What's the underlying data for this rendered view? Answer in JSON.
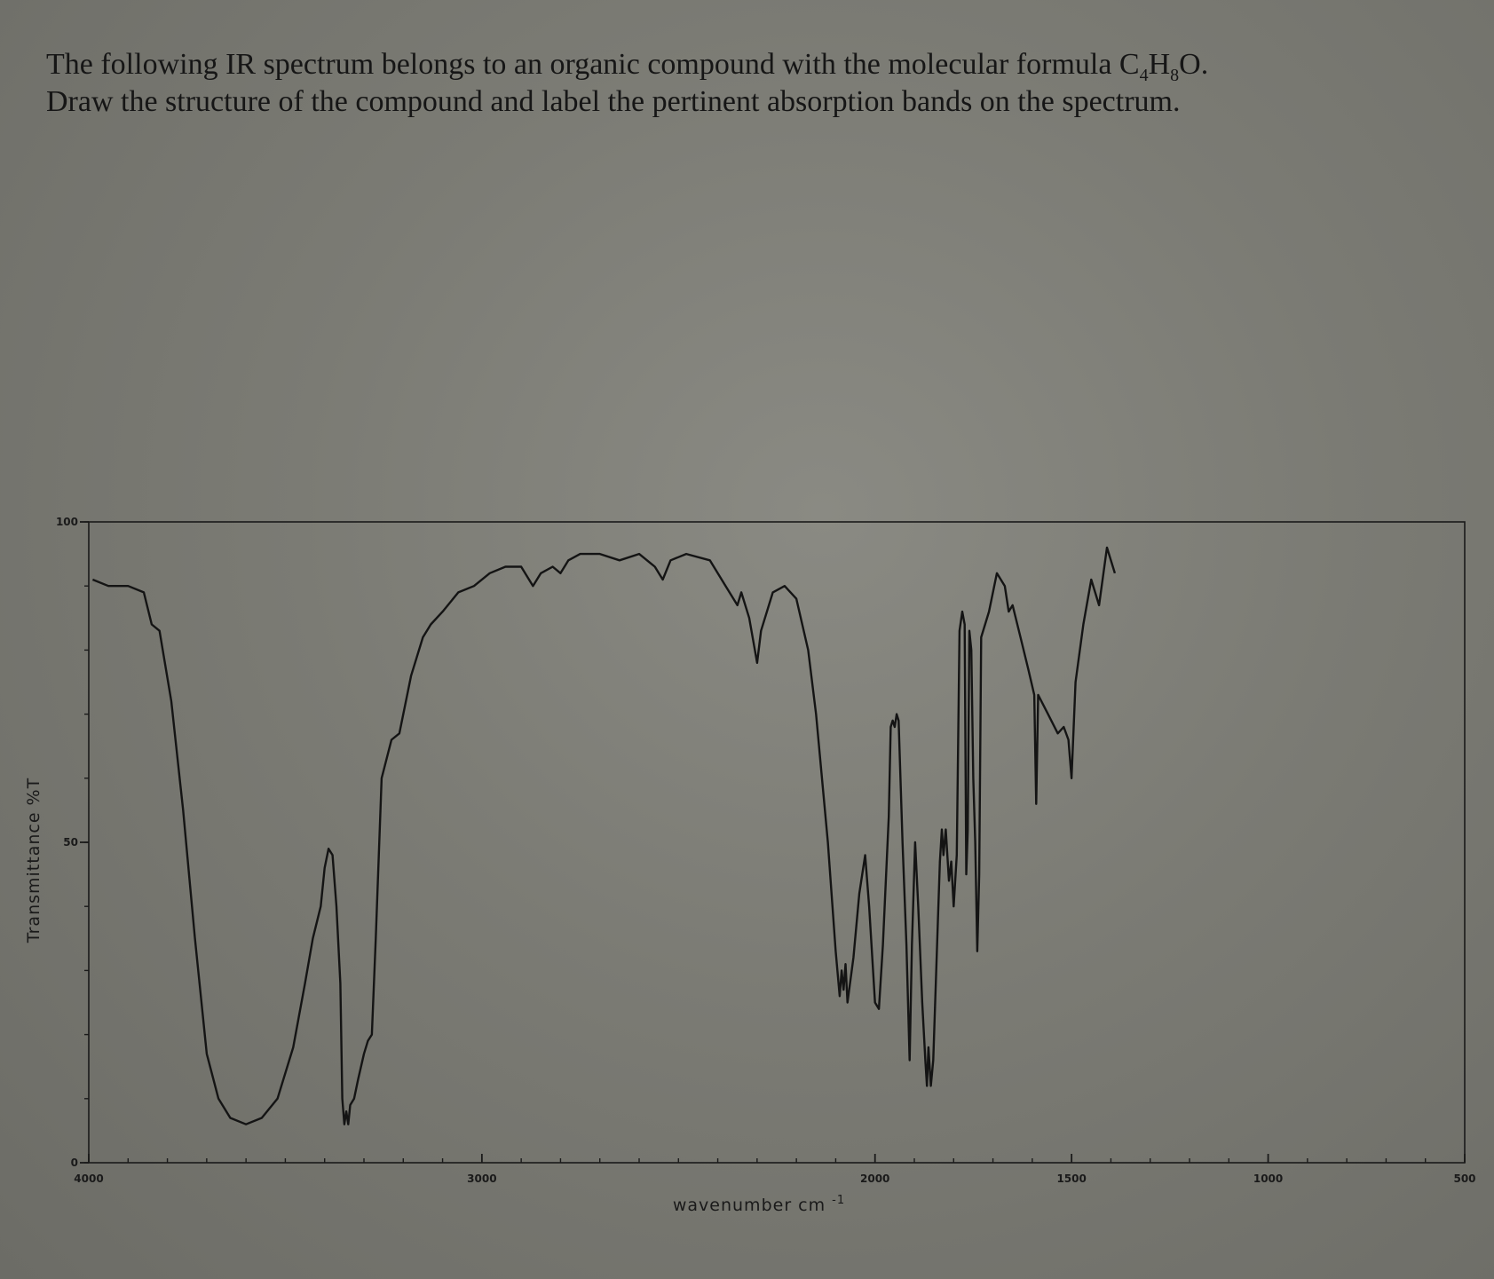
{
  "question": {
    "line1_before": "The following IR spectrum belongs to an organic compound with the molecular formula C",
    "sub_c": "4",
    "mid_h": "H",
    "sub_h": "8",
    "line1_after": "O.",
    "line2": "Draw the structure of the compound and label the pertinent absorption bands on the spectrum."
  },
  "chart_data": {
    "type": "line",
    "title": "",
    "xlabel": "wavenumber cm",
    "xlabel_sup": "-1",
    "ylabel": "Transmittance %T",
    "xlim": [
      4000,
      500
    ],
    "ylim": [
      0,
      100
    ],
    "x_reversed": true,
    "grid": false,
    "x_ticks": [
      {
        "value": 4000,
        "label": "4000"
      },
      {
        "value": 3000,
        "label": "3000"
      },
      {
        "value": 2000,
        "label": "2000"
      },
      {
        "value": 1500,
        "label": "1500"
      },
      {
        "value": 1000,
        "label": "1000"
      },
      {
        "value": 500,
        "label": "500"
      }
    ],
    "y_ticks": [
      {
        "value": 100,
        "label": "100"
      },
      {
        "value": 50,
        "label": "50"
      },
      {
        "value": 0,
        "label": "0"
      }
    ],
    "series": [
      {
        "points": [
          [
            3990,
            91
          ],
          [
            3950,
            90
          ],
          [
            3900,
            90
          ],
          [
            3860,
            89
          ],
          [
            3840,
            84
          ],
          [
            3820,
            83
          ],
          [
            3790,
            72
          ],
          [
            3760,
            55
          ],
          [
            3730,
            35
          ],
          [
            3700,
            17
          ],
          [
            3670,
            10
          ],
          [
            3640,
            7
          ],
          [
            3600,
            6
          ],
          [
            3560,
            7
          ],
          [
            3520,
            10
          ],
          [
            3480,
            18
          ],
          [
            3450,
            28
          ],
          [
            3430,
            35
          ],
          [
            3410,
            40
          ],
          [
            3400,
            46
          ],
          [
            3390,
            49
          ],
          [
            3380,
            48
          ],
          [
            3370,
            40
          ],
          [
            3360,
            28
          ],
          [
            3355,
            10
          ],
          [
            3350,
            6
          ],
          [
            3345,
            8
          ],
          [
            3340,
            6
          ],
          [
            3335,
            9
          ],
          [
            3325,
            10
          ],
          [
            3315,
            13
          ],
          [
            3300,
            17
          ],
          [
            3290,
            19
          ],
          [
            3280,
            20
          ],
          [
            3270,
            35
          ],
          [
            3255,
            60
          ],
          [
            3230,
            66
          ],
          [
            3210,
            67
          ],
          [
            3180,
            76
          ],
          [
            3150,
            82
          ],
          [
            3130,
            84
          ],
          [
            3100,
            86
          ],
          [
            3060,
            89
          ],
          [
            3020,
            90
          ],
          [
            2980,
            92
          ],
          [
            2940,
            93
          ],
          [
            2900,
            93
          ],
          [
            2870,
            90
          ],
          [
            2850,
            92
          ],
          [
            2820,
            93
          ],
          [
            2800,
            92
          ],
          [
            2780,
            94
          ],
          [
            2750,
            95
          ],
          [
            2700,
            95
          ],
          [
            2650,
            94
          ],
          [
            2600,
            95
          ],
          [
            2560,
            93
          ],
          [
            2540,
            91
          ],
          [
            2520,
            94
          ],
          [
            2480,
            95
          ],
          [
            2420,
            94
          ],
          [
            2380,
            90
          ],
          [
            2350,
            87
          ],
          [
            2340,
            89
          ],
          [
            2320,
            85
          ],
          [
            2300,
            78
          ],
          [
            2290,
            83
          ],
          [
            2260,
            89
          ],
          [
            2230,
            90
          ],
          [
            2200,
            88
          ],
          [
            2170,
            80
          ],
          [
            2150,
            70
          ],
          [
            2120,
            50
          ],
          [
            2100,
            33
          ],
          [
            2090,
            26
          ],
          [
            2085,
            30
          ],
          [
            2080,
            27
          ],
          [
            2075,
            31
          ],
          [
            2070,
            25
          ],
          [
            2055,
            32
          ],
          [
            2040,
            42
          ],
          [
            2025,
            48
          ],
          [
            2015,
            40
          ],
          [
            2000,
            25
          ],
          [
            1990,
            24
          ],
          [
            1980,
            34
          ],
          [
            1965,
            54
          ],
          [
            1960,
            68
          ],
          [
            1955,
            69
          ],
          [
            1950,
            68
          ],
          [
            1945,
            70
          ],
          [
            1940,
            69
          ],
          [
            1930,
            50
          ],
          [
            1920,
            34
          ],
          [
            1912,
            16
          ],
          [
            1906,
            34
          ],
          [
            1898,
            50
          ],
          [
            1890,
            40
          ],
          [
            1880,
            25
          ],
          [
            1872,
            16
          ],
          [
            1868,
            12
          ],
          [
            1864,
            18
          ],
          [
            1858,
            12
          ],
          [
            1852,
            16
          ],
          [
            1840,
            38
          ],
          [
            1835,
            47
          ],
          [
            1830,
            52
          ],
          [
            1826,
            48
          ],
          [
            1820,
            52
          ],
          [
            1812,
            44
          ],
          [
            1806,
            47
          ],
          [
            1800,
            40
          ],
          [
            1792,
            48
          ],
          [
            1785,
            83
          ],
          [
            1778,
            86
          ],
          [
            1772,
            84
          ],
          [
            1768,
            45
          ],
          [
            1764,
            52
          ],
          [
            1760,
            83
          ],
          [
            1755,
            80
          ],
          [
            1750,
            60
          ],
          [
            1745,
            50
          ],
          [
            1740,
            33
          ],
          [
            1735,
            45
          ],
          [
            1730,
            82
          ],
          [
            1710,
            86
          ],
          [
            1690,
            92
          ],
          [
            1670,
            90
          ],
          [
            1660,
            86
          ],
          [
            1650,
            87
          ],
          [
            1630,
            82
          ],
          [
            1610,
            77
          ],
          [
            1595,
            73
          ],
          [
            1590,
            56
          ],
          [
            1585,
            73
          ],
          [
            1560,
            70
          ],
          [
            1535,
            67
          ],
          [
            1520,
            68
          ],
          [
            1508,
            66
          ],
          [
            1500,
            60
          ],
          [
            1490,
            75
          ],
          [
            1470,
            84
          ],
          [
            1450,
            91
          ],
          [
            1430,
            87
          ],
          [
            1410,
            96
          ],
          [
            1390,
            92
          ]
        ]
      }
    ]
  }
}
